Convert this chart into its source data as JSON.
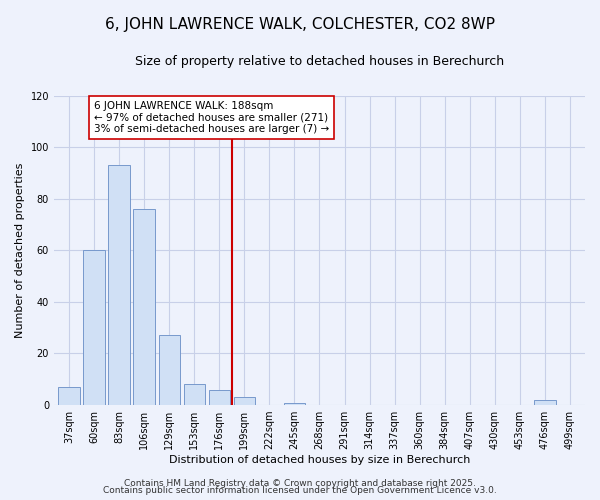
{
  "title": "6, JOHN LAWRENCE WALK, COLCHESTER, CO2 8WP",
  "subtitle": "Size of property relative to detached houses in Berechurch",
  "xlabel": "Distribution of detached houses by size in Berechurch",
  "ylabel": "Number of detached properties",
  "bin_labels": [
    "37sqm",
    "60sqm",
    "83sqm",
    "106sqm",
    "129sqm",
    "153sqm",
    "176sqm",
    "199sqm",
    "222sqm",
    "245sqm",
    "268sqm",
    "291sqm",
    "314sqm",
    "337sqm",
    "360sqm",
    "384sqm",
    "407sqm",
    "430sqm",
    "453sqm",
    "476sqm",
    "499sqm"
  ],
  "bin_counts": [
    7,
    60,
    93,
    76,
    27,
    8,
    6,
    3,
    0,
    1,
    0,
    0,
    0,
    0,
    0,
    0,
    0,
    0,
    0,
    2,
    0
  ],
  "bar_color": "#d0e0f5",
  "bar_edge_color": "#7799cc",
  "vline_color": "#cc0000",
  "annotation_line1": "6 JOHN LAWRENCE WALK: 188sqm",
  "annotation_line2": "← 97% of detached houses are smaller (271)",
  "annotation_line3": "3% of semi-detached houses are larger (7) →",
  "annotation_box_color": "#ffffff",
  "annotation_box_edge": "#cc0000",
  "ylim": [
    0,
    120
  ],
  "yticks": [
    0,
    20,
    40,
    60,
    80,
    100,
    120
  ],
  "footer1": "Contains HM Land Registry data © Crown copyright and database right 2025.",
  "footer2": "Contains public sector information licensed under the Open Government Licence v3.0.",
  "background_color": "#eef2fc",
  "grid_color": "#c8d0e8",
  "title_fontsize": 11,
  "subtitle_fontsize": 9,
  "axis_label_fontsize": 8,
  "tick_fontsize": 7,
  "annotation_fontsize": 7.5,
  "footer_fontsize": 6.5
}
